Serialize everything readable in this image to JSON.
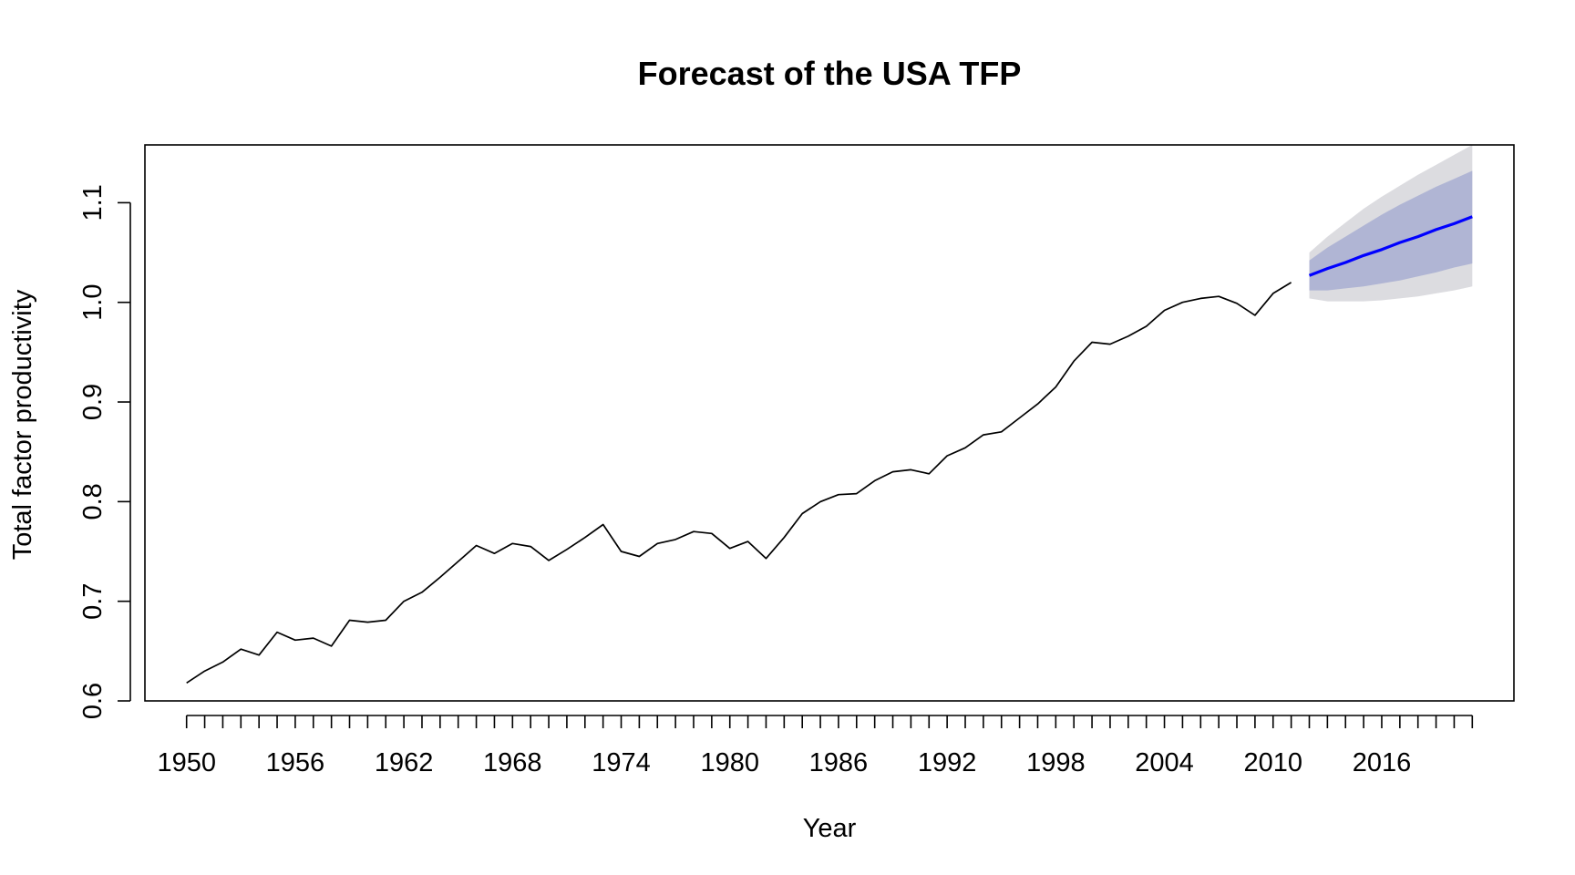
{
  "chart_data": {
    "type": "line",
    "title": "Forecast of the USA TFP",
    "xlabel": "Year",
    "ylabel": "Total factor productivity",
    "xlim": [
      1947.7,
      2023.3
    ],
    "ylim": [
      0.6,
      1.158
    ],
    "x_tick_labels": [
      "1950",
      "1956",
      "1962",
      "1968",
      "1974",
      "1980",
      "1986",
      "1992",
      "1998",
      "2004",
      "2010",
      "2016"
    ],
    "y_tick_labels": [
      "0.6",
      "0.7",
      "0.8",
      "0.9",
      "1.0",
      "1.1"
    ],
    "grid": false,
    "colors": {
      "history": "#000000",
      "forecast": "#0000ff",
      "band80": "#b0b5d4",
      "band95": "#dcdce0"
    },
    "series": [
      {
        "role": "history",
        "x": [
          1950,
          1951,
          1952,
          1953,
          1954,
          1955,
          1956,
          1957,
          1958,
          1959,
          1960,
          1961,
          1962,
          1963,
          1964,
          1965,
          1966,
          1967,
          1968,
          1969,
          1970,
          1971,
          1972,
          1973,
          1974,
          1975,
          1976,
          1977,
          1978,
          1979,
          1980,
          1981,
          1982,
          1983,
          1984,
          1985,
          1986,
          1987,
          1988,
          1989,
          1990,
          1991,
          1992,
          1993,
          1994,
          1995,
          1996,
          1997,
          1998,
          1999,
          2000,
          2001,
          2002,
          2003,
          2004,
          2005,
          2006,
          2007,
          2008,
          2009,
          2010,
          2011
        ],
        "y": [
          0.618,
          0.63,
          0.639,
          0.652,
          0.646,
          0.669,
          0.661,
          0.663,
          0.655,
          0.681,
          0.679,
          0.681,
          0.7,
          0.709,
          0.724,
          0.74,
          0.756,
          0.748,
          0.758,
          0.755,
          0.741,
          0.752,
          0.764,
          0.777,
          0.75,
          0.745,
          0.758,
          0.762,
          0.77,
          0.768,
          0.753,
          0.76,
          0.743,
          0.764,
          0.788,
          0.8,
          0.807,
          0.808,
          0.821,
          0.83,
          0.832,
          0.828,
          0.846,
          0.854,
          0.867,
          0.87,
          0.884,
          0.898,
          0.915,
          0.941,
          0.96,
          0.958,
          0.966,
          0.976,
          0.992,
          1.0,
          1.004,
          1.006,
          0.999,
          0.987,
          1.009,
          1.02
        ]
      },
      {
        "role": "forecast",
        "x": [
          2012,
          2013,
          2014,
          2015,
          2016,
          2017,
          2018,
          2019,
          2020,
          2021
        ],
        "y": [
          1.027,
          1.034,
          1.04,
          1.047,
          1.053,
          1.06,
          1.066,
          1.073,
          1.079,
          1.086
        ],
        "lo80": [
          1.012,
          1.012,
          1.014,
          1.016,
          1.019,
          1.022,
          1.026,
          1.03,
          1.035,
          1.039
        ],
        "hi80": [
          1.042,
          1.055,
          1.066,
          1.077,
          1.088,
          1.098,
          1.107,
          1.116,
          1.124,
          1.132
        ],
        "lo95": [
          1.004,
          1.001,
          1.001,
          1.001,
          1.002,
          1.004,
          1.006,
          1.009,
          1.012,
          1.016
        ],
        "hi95": [
          1.05,
          1.066,
          1.08,
          1.094,
          1.106,
          1.117,
          1.128,
          1.138,
          1.148,
          1.158
        ]
      }
    ]
  }
}
